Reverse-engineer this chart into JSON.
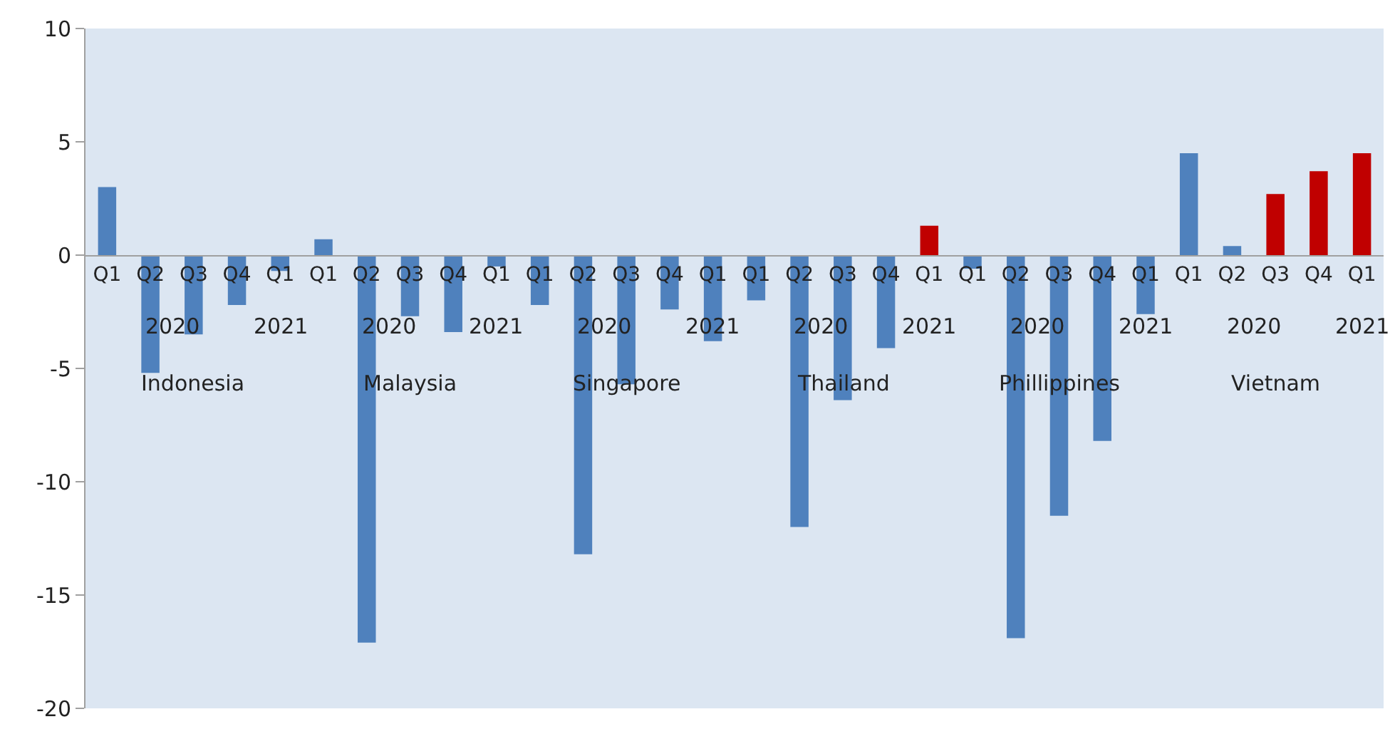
{
  "chart_data": {
    "type": "bar",
    "categories": [
      "Q1",
      "Q2",
      "Q3",
      "Q4",
      "Q1",
      "Q1",
      "Q2",
      "Q3",
      "Q4",
      "Q1",
      "Q1",
      "Q2",
      "Q3",
      "Q4",
      "Q1",
      "Q1",
      "Q2",
      "Q3",
      "Q4",
      "Q1",
      "Q1",
      "Q2",
      "Q3",
      "Q4",
      "Q1",
      "Q1",
      "Q2",
      "Q3",
      "Q4",
      "Q1"
    ],
    "values": [
      3.0,
      -5.2,
      -3.5,
      -2.2,
      -0.7,
      0.7,
      -17.1,
      -2.7,
      -3.4,
      -0.5,
      -2.2,
      -13.2,
      -5.7,
      -2.4,
      -3.8,
      -2.0,
      -12.0,
      -6.4,
      -4.1,
      1.3,
      -0.6,
      -16.9,
      -11.5,
      -8.2,
      -2.6,
      4.5,
      0.4,
      2.7,
      3.7,
      4.5
    ],
    "colors": [
      "#4f81bd",
      "#4f81bd",
      "#4f81bd",
      "#4f81bd",
      "#4f81bd",
      "#4f81bd",
      "#4f81bd",
      "#4f81bd",
      "#4f81bd",
      "#4f81bd",
      "#4f81bd",
      "#4f81bd",
      "#4f81bd",
      "#4f81bd",
      "#4f81bd",
      "#4f81bd",
      "#4f81bd",
      "#4f81bd",
      "#4f81bd",
      "#c00000",
      "#4f81bd",
      "#4f81bd",
      "#4f81bd",
      "#4f81bd",
      "#4f81bd",
      "#4f81bd",
      "#4f81bd",
      "#c00000",
      "#c00000",
      "#c00000"
    ],
    "annotations": [
      "2020",
      "2021",
      "Indonesia",
      "2020",
      "2021",
      "Malaysia",
      "2020",
      "2021",
      "Singapore",
      "2020",
      "2021",
      "Thailand",
      "2020",
      "2021",
      "Phillippines",
      "2020",
      "2021",
      "Vietnam"
    ],
    "ylim": [
      -20,
      10
    ],
    "yticks": [
      -20,
      -15,
      -10,
      -5,
      0,
      5,
      10
    ],
    "grid": false
  }
}
